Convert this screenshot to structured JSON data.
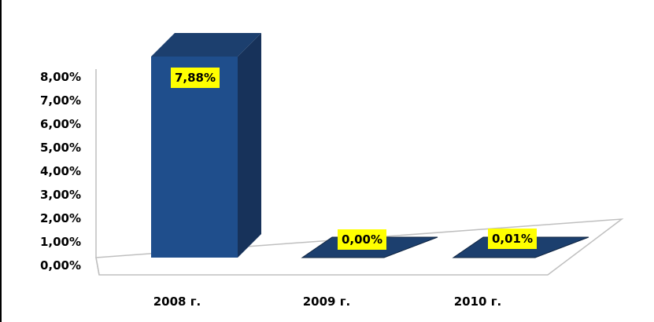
{
  "chart_data": {
    "type": "bar",
    "categories": [
      "2008 г.",
      "2009 г.",
      "2010 г."
    ],
    "values": [
      7.88,
      0.0,
      0.01
    ],
    "data_labels": [
      "7,88%",
      "0,00%",
      "0,01%"
    ],
    "y_ticks": [
      {
        "value": 0,
        "label": "0,00%"
      },
      {
        "value": 1,
        "label": "1,00%"
      },
      {
        "value": 2,
        "label": "2,00%"
      },
      {
        "value": 3,
        "label": "3,00%"
      },
      {
        "value": 4,
        "label": "4,00%"
      },
      {
        "value": 5,
        "label": "5,00%"
      },
      {
        "value": 6,
        "label": "6,00%"
      },
      {
        "value": 7,
        "label": "7,00%"
      },
      {
        "value": 8,
        "label": "8,00%"
      }
    ],
    "ylim": [
      0,
      8
    ],
    "title": "",
    "xlabel": "",
    "ylabel": "",
    "grid": false,
    "three_d": true,
    "colors": {
      "bar_front": "#1F4E8C",
      "bar_side": "#17325A",
      "bar_top": "#1C3F6E",
      "label_bg": "#FFFF00",
      "floor_line": "#BFBFBF"
    }
  }
}
